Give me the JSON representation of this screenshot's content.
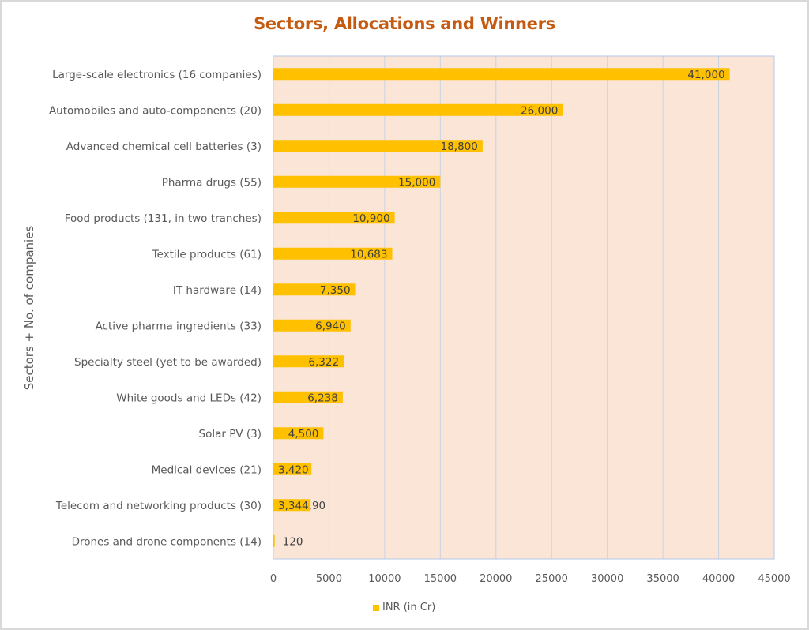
{
  "chart_data": {
    "type": "bar",
    "orientation": "horizontal",
    "title": "Sectors, Allocations and Winners",
    "xlabel": "",
    "ylabel": "Sectors + No. of companies",
    "xlim": [
      0,
      45000
    ],
    "xticks": [
      0,
      5000,
      10000,
      15000,
      20000,
      25000,
      30000,
      35000,
      40000,
      45000
    ],
    "grid": true,
    "legend_position": "bottom",
    "categories": [
      "Large-scale electronics (16 companies)",
      "Automobiles and auto-components (20)",
      "Advanced chemical cell batteries (3)",
      "Pharma drugs (55)",
      "Food products (131, in two tranches)",
      "Textile products (61)",
      "IT hardware  (14)",
      "Active pharma ingredients (33)",
      "Specialty steel (yet to be awarded)",
      "White goods and LEDs (42)",
      "Solar PV (3)",
      "Medical devices (21)",
      "Telecom and networking products (30)",
      "Drones and drone components (14)"
    ],
    "series": [
      {
        "name": "INR (in Cr)",
        "color": "#ffc000",
        "values": [
          41000,
          26000,
          18800,
          15000,
          10900,
          10683,
          7350,
          6940,
          6322,
          6238,
          4500,
          3420,
          3344.9,
          120
        ],
        "labels": [
          "41,000",
          "26,000",
          "18,800",
          "15,000",
          "10,900",
          "10,683",
          "7,350",
          "6,940",
          "6,322",
          "6,238",
          "4,500",
          "3,420",
          "3,344.90",
          "120"
        ]
      }
    ]
  },
  "colors": {
    "title": "#c55a11",
    "plot_background": "#fbe5d6",
    "bar": "#ffc000",
    "gridline": "#c9d3e3",
    "text": "#595959"
  }
}
